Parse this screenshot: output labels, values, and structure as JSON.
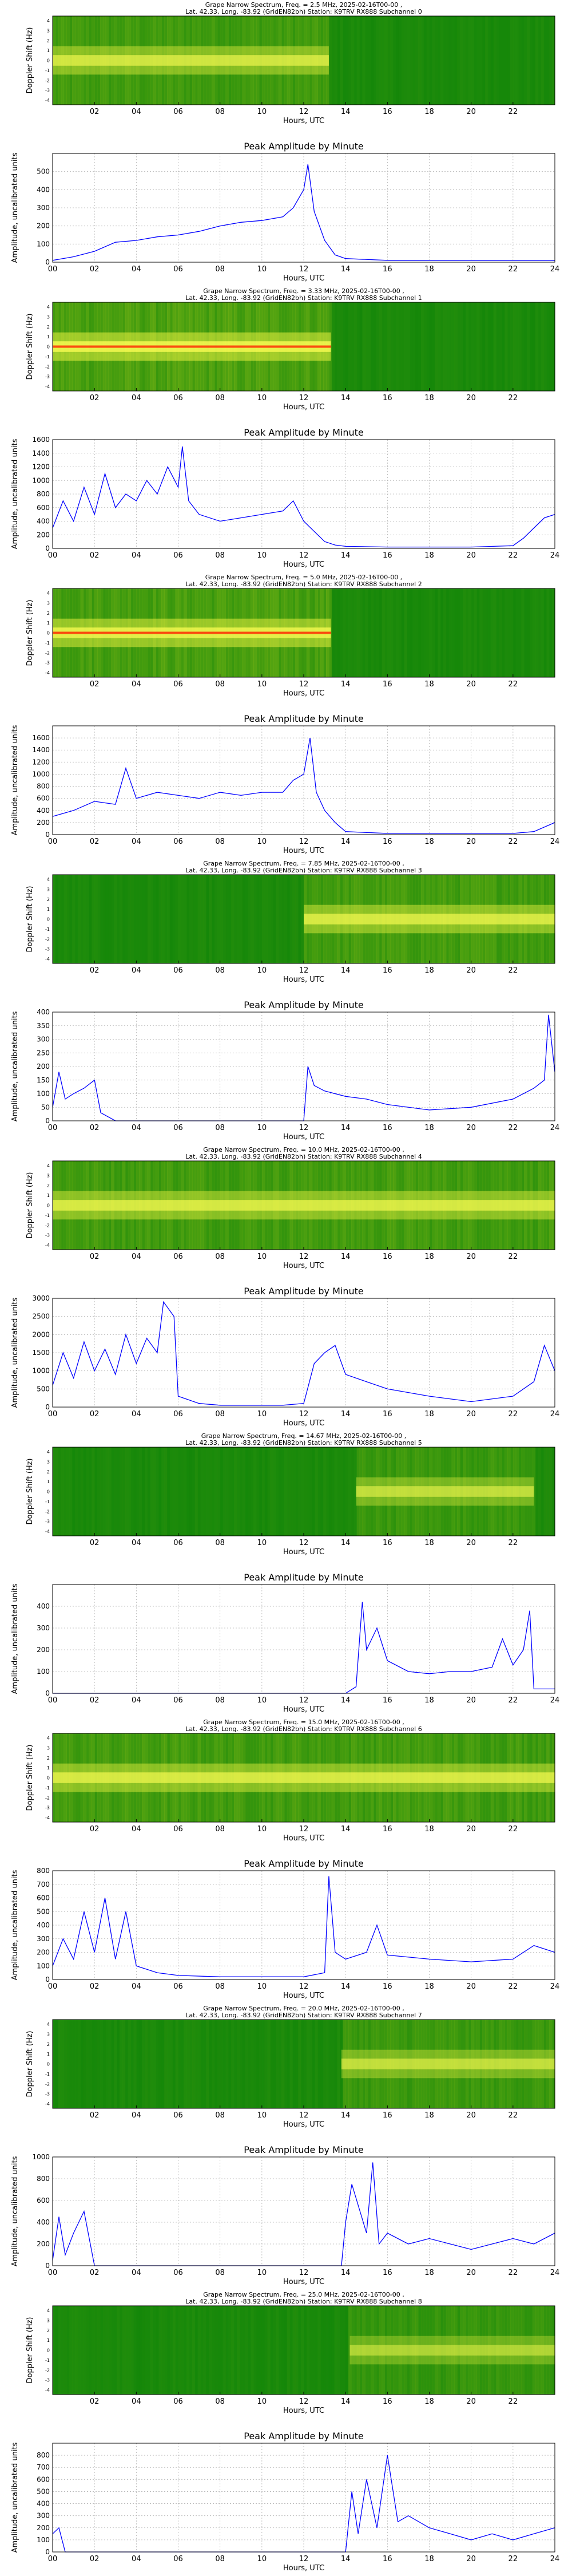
{
  "common": {
    "xlabel": "Hours, UTC",
    "spec_ylabel": "Doppler Shift (Hz)",
    "amp_ylabel": "Amplitude, uncalibrated units",
    "amp_title": "Peak Amplitude by Minute",
    "spec_xticks": [
      "02",
      "04",
      "06",
      "08",
      "10",
      "12",
      "14",
      "16",
      "18",
      "20",
      "22"
    ],
    "spec_yticks": [
      "4",
      "3",
      "2",
      "1",
      "0",
      "-1",
      "-2",
      "-3",
      "-4"
    ],
    "amp_xticks": [
      "00",
      "02",
      "04",
      "06",
      "08",
      "10",
      "12",
      "14",
      "16",
      "18",
      "20",
      "22",
      "24"
    ],
    "colors": {
      "line": "#0000ff",
      "grid": "#b0b0b0",
      "spec_base": "#1a8a00",
      "spec_hot": "#ffff33",
      "spec_peak": "#ff2200"
    }
  },
  "chart_data": [
    {
      "subchannel": 0,
      "spectrogram": {
        "type": "heatmap",
        "title_line1": "Grape Narrow Spectrum, Freq. = 2.5 MHz, 2025-02-16T00-00 ,",
        "title_line2": "Lat.  42.33, Long. -83.92 (GridEN82bh) Station: K9TRV RX888 Subchannel 0",
        "active_hours": [
          0,
          13.2
        ],
        "intensity": 0.8,
        "center_red": false
      },
      "amplitude": {
        "type": "line",
        "ylim": [
          0,
          600
        ],
        "yticks": [
          0,
          100,
          200,
          300,
          400,
          500
        ],
        "x": [
          0,
          1,
          2,
          3,
          4,
          5,
          6,
          7,
          8,
          9,
          10,
          11,
          11.5,
          12,
          12.2,
          12.5,
          13,
          13.5,
          14,
          16,
          18,
          20,
          22,
          24
        ],
        "y": [
          10,
          30,
          60,
          110,
          120,
          140,
          150,
          170,
          200,
          220,
          230,
          250,
          300,
          400,
          540,
          280,
          120,
          40,
          20,
          10,
          10,
          10,
          10,
          10
        ]
      }
    },
    {
      "subchannel": 1,
      "spectrogram": {
        "type": "heatmap",
        "title_line1": "Grape Narrow Spectrum, Freq. = 3.33 MHz, 2025-02-16T00-00 ,",
        "title_line2": "Lat.  42.33, Long. -83.92 (GridEN82bh) Station: K9TRV RX888 Subchannel 1",
        "active_hours": [
          0,
          13.3
        ],
        "intensity": 1.0,
        "center_red": true
      },
      "amplitude": {
        "type": "line",
        "ylim": [
          0,
          1600
        ],
        "yticks": [
          0,
          200,
          400,
          600,
          800,
          1000,
          1200,
          1400,
          1600
        ],
        "x": [
          0,
          0.5,
          1,
          1.5,
          2,
          2.5,
          3,
          3.5,
          4,
          4.5,
          5,
          5.5,
          6,
          6.2,
          6.5,
          7,
          8,
          9,
          10,
          11,
          11.5,
          12,
          12.5,
          13,
          13.5,
          14,
          16,
          18,
          20,
          22,
          22.5,
          23,
          23.5,
          24
        ],
        "y": [
          300,
          700,
          400,
          900,
          500,
          1100,
          600,
          800,
          700,
          1000,
          800,
          1200,
          900,
          1500,
          700,
          500,
          400,
          450,
          500,
          550,
          700,
          400,
          250,
          100,
          50,
          30,
          20,
          20,
          20,
          40,
          150,
          300,
          450,
          500
        ]
      }
    },
    {
      "subchannel": 2,
      "spectrogram": {
        "type": "heatmap",
        "title_line1": "Grape Narrow Spectrum, Freq. = 5.0 MHz, 2025-02-16T00-00 ,",
        "title_line2": "Lat.  42.33, Long. -83.92 (GridEN82bh) Station: K9TRV RX888 Subchannel 2",
        "active_hours": [
          0,
          13.3
        ],
        "intensity": 0.95,
        "center_red": true
      },
      "amplitude": {
        "type": "line",
        "ylim": [
          0,
          1800
        ],
        "yticks": [
          0,
          200,
          400,
          600,
          800,
          1000,
          1200,
          1400,
          1600
        ],
        "x": [
          0,
          1,
          2,
          3,
          3.5,
          4,
          5,
          6,
          7,
          8,
          9,
          10,
          11,
          11.5,
          12,
          12.3,
          12.6,
          13,
          13.5,
          14,
          16,
          18,
          20,
          22,
          23,
          24
        ],
        "y": [
          300,
          400,
          550,
          500,
          1100,
          600,
          700,
          650,
          600,
          700,
          650,
          700,
          700,
          900,
          1000,
          1600,
          700,
          400,
          200,
          50,
          20,
          20,
          20,
          20,
          50,
          200
        ]
      }
    },
    {
      "subchannel": 3,
      "spectrogram": {
        "type": "heatmap",
        "title_line1": "Grape Narrow Spectrum, Freq. = 7.85 MHz, 2025-02-16T00-00 ,",
        "title_line2": "Lat.  42.33, Long. -83.92 (GridEN82bh) Station: K9TRV RX888 Subchannel 3",
        "active_hours": [
          12,
          24
        ],
        "intensity": 0.85,
        "center_red": false
      },
      "amplitude": {
        "type": "line",
        "ylim": [
          0,
          400
        ],
        "yticks": [
          0,
          50,
          100,
          150,
          200,
          250,
          300,
          350,
          400
        ],
        "x": [
          0,
          0.3,
          0.6,
          1,
          1.5,
          2,
          2.3,
          3,
          6,
          9,
          12,
          12.2,
          12.5,
          13,
          14,
          15,
          16,
          18,
          20,
          22,
          23,
          23.5,
          23.7,
          24
        ],
        "y": [
          50,
          180,
          80,
          100,
          120,
          150,
          30,
          0,
          0,
          0,
          0,
          200,
          130,
          110,
          90,
          80,
          60,
          40,
          50,
          80,
          120,
          150,
          390,
          180
        ]
      }
    },
    {
      "subchannel": 4,
      "spectrogram": {
        "type": "heatmap",
        "title_line1": "Grape Narrow Spectrum, Freq. = 10.0 MHz, 2025-02-16T00-00 ,",
        "title_line2": "Lat.  42.33, Long. -83.92 (GridEN82bh) Station: K9TRV RX888 Subchannel 4",
        "active_hours": [
          0,
          24
        ],
        "intensity": 0.85,
        "center_red": false
      },
      "amplitude": {
        "type": "line",
        "ylim": [
          0,
          3000
        ],
        "yticks": [
          0,
          500,
          1000,
          1500,
          2000,
          2500,
          3000
        ],
        "x": [
          0,
          0.5,
          1,
          1.5,
          2,
          2.5,
          3,
          3.5,
          4,
          4.5,
          5,
          5.3,
          5.8,
          6,
          7,
          8,
          9,
          10,
          11,
          12,
          12.5,
          13,
          13.5,
          14,
          15,
          16,
          18,
          20,
          22,
          23,
          23.5,
          24
        ],
        "y": [
          600,
          1500,
          800,
          1800,
          1000,
          1600,
          900,
          2000,
          1200,
          1900,
          1500,
          2900,
          2500,
          300,
          100,
          50,
          50,
          50,
          50,
          100,
          1200,
          1500,
          1700,
          900,
          700,
          500,
          300,
          150,
          300,
          700,
          1700,
          1000
        ]
      }
    },
    {
      "subchannel": 5,
      "spectrogram": {
        "type": "heatmap",
        "title_line1": "Grape Narrow Spectrum, Freq. = 14.67 MHz, 2025-02-16T00-00 ,",
        "title_line2": "Lat.  42.33, Long. -83.92 (GridEN82bh) Station: K9TRV RX888 Subchannel 5",
        "active_hours": [
          14.5,
          23
        ],
        "intensity": 0.7,
        "center_red": false
      },
      "amplitude": {
        "type": "line",
        "ylim": [
          0,
          500
        ],
        "yticks": [
          0,
          100,
          200,
          300,
          400
        ],
        "x": [
          0,
          4,
          8,
          12,
          14,
          14.5,
          14.8,
          15,
          15.5,
          16,
          17,
          18,
          19,
          20,
          21,
          21.5,
          22,
          22.5,
          22.8,
          23,
          24
        ],
        "y": [
          0,
          0,
          0,
          0,
          0,
          30,
          420,
          200,
          300,
          150,
          100,
          90,
          100,
          100,
          120,
          250,
          130,
          200,
          380,
          20,
          20
        ]
      }
    },
    {
      "subchannel": 6,
      "spectrogram": {
        "type": "heatmap",
        "title_line1": "Grape Narrow Spectrum, Freq. = 15.0 MHz, 2025-02-16T00-00 ,",
        "title_line2": "Lat.  42.33, Long. -83.92 (GridEN82bh) Station: K9TRV RX888 Subchannel 6",
        "active_hours": [
          0,
          24
        ],
        "intensity": 0.85,
        "center_red": false
      },
      "amplitude": {
        "type": "line",
        "ylim": [
          0,
          800
        ],
        "yticks": [
          0,
          100,
          200,
          300,
          400,
          500,
          600,
          700,
          800
        ],
        "x": [
          0,
          0.5,
          1,
          1.5,
          2,
          2.5,
          3,
          3.5,
          4,
          5,
          6,
          8,
          10,
          12,
          13,
          13.2,
          13.5,
          14,
          15,
          15.5,
          16,
          18,
          20,
          22,
          23,
          24
        ],
        "y": [
          100,
          300,
          150,
          500,
          200,
          600,
          150,
          500,
          100,
          50,
          30,
          20,
          20,
          20,
          50,
          760,
          200,
          150,
          200,
          400,
          180,
          150,
          130,
          150,
          250,
          200
        ]
      }
    },
    {
      "subchannel": 7,
      "spectrogram": {
        "type": "heatmap",
        "title_line1": "Grape Narrow Spectrum, Freq. = 20.0 MHz, 2025-02-16T00-00 ,",
        "title_line2": "Lat.  42.33, Long. -83.92 (GridEN82bh) Station: K9TRV RX888 Subchannel 7",
        "active_hours": [
          13.8,
          24
        ],
        "intensity": 0.7,
        "center_red": false
      },
      "amplitude": {
        "type": "line",
        "ylim": [
          0,
          1000
        ],
        "yticks": [
          0,
          200,
          400,
          600,
          800,
          1000
        ],
        "x": [
          0,
          0.3,
          0.6,
          1,
          1.5,
          2,
          4,
          8,
          12,
          13.8,
          14,
          14.3,
          15,
          15.3,
          15.6,
          16,
          17,
          18,
          19,
          20,
          21,
          22,
          23,
          24
        ],
        "y": [
          50,
          450,
          100,
          300,
          500,
          0,
          0,
          0,
          0,
          0,
          400,
          750,
          300,
          950,
          200,
          300,
          200,
          250,
          200,
          150,
          200,
          250,
          200,
          300
        ]
      }
    },
    {
      "subchannel": 8,
      "spectrogram": {
        "type": "heatmap",
        "title_line1": "Grape Narrow Spectrum, Freq. = 25.0 MHz, 2025-02-16T00-00 ,",
        "title_line2": "Lat.  42.33, Long. -83.92 (GridEN82bh) Station: K9TRV RX888 Subchannel 8",
        "active_hours": [
          14.2,
          24
        ],
        "intensity": 0.6,
        "center_red": false
      },
      "amplitude": {
        "type": "line",
        "ylim": [
          0,
          900
        ],
        "yticks": [
          0,
          100,
          200,
          300,
          400,
          500,
          600,
          700,
          800
        ],
        "x": [
          0,
          0.3,
          0.6,
          2,
          6,
          10,
          14,
          14.3,
          14.6,
          15,
          15.5,
          16,
          16.5,
          17,
          18,
          19,
          20,
          21,
          22,
          23,
          24
        ],
        "y": [
          150,
          200,
          0,
          0,
          0,
          0,
          0,
          500,
          150,
          600,
          200,
          800,
          250,
          300,
          200,
          150,
          100,
          150,
          100,
          150,
          200
        ]
      }
    }
  ]
}
